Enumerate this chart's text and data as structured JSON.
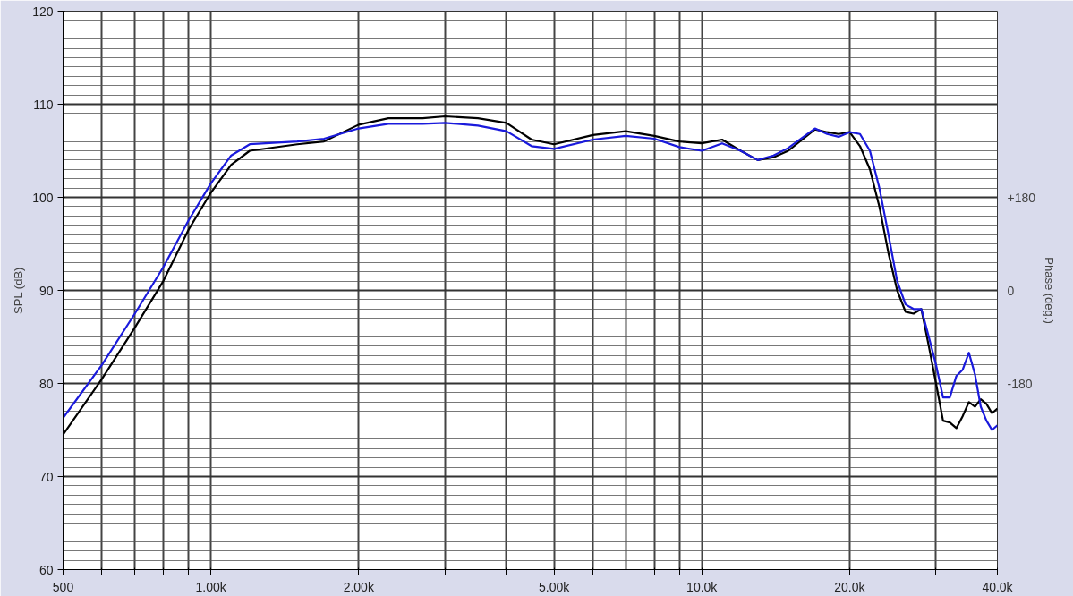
{
  "chart_data": {
    "type": "line",
    "xlabel": null,
    "ylabel": "SPL (dB)",
    "y2label": "Phase (deg.)",
    "log": "x",
    "x": [
      500,
      600,
      700,
      800,
      900,
      1000,
      1100,
      1200,
      1500,
      1700,
      2000,
      2300,
      2700,
      3000,
      3500,
      4000,
      4500,
      5000,
      6000,
      7000,
      8000,
      9000,
      10000,
      11000,
      12000,
      13000,
      14000,
      15000,
      17000,
      18000,
      19000,
      20000,
      21000,
      22000,
      23000,
      24000,
      25000,
      26000,
      27000,
      28000,
      29000,
      30000,
      31000,
      32000,
      33000,
      34000,
      35000,
      36000,
      37000,
      38000,
      39000,
      40000
    ],
    "series": [
      {
        "color": "#000000",
        "values": [
          74.5,
          80.5,
          86,
          91,
          96.5,
          100.5,
          103.5,
          105,
          105.7,
          106,
          107.8,
          108.5,
          108.5,
          108.7,
          108.5,
          108,
          106.2,
          105.7,
          106.7,
          107.1,
          106.6,
          106,
          105.8,
          106.2,
          105,
          104,
          104.3,
          105,
          107.3,
          107,
          106.8,
          107,
          105.5,
          103,
          99,
          94,
          90,
          87.7,
          87.5,
          88,
          84,
          80,
          76,
          75.8,
          75.2,
          76.5,
          78,
          77.5,
          78.3,
          77.8,
          76.8,
          77.3
        ]
      },
      {
        "color": "#1a1adc",
        "values": [
          76.3,
          82,
          87.5,
          92.5,
          97.5,
          101.5,
          104.5,
          105.7,
          106,
          106.3,
          107.4,
          107.9,
          107.9,
          108,
          107.7,
          107.1,
          105.5,
          105.2,
          106.2,
          106.6,
          106.3,
          105.4,
          105,
          105.8,
          105,
          104,
          104.5,
          105.3,
          107.4,
          106.8,
          106.5,
          107,
          106.8,
          105,
          101,
          96,
          91,
          88.5,
          88,
          88,
          85,
          82,
          78.5,
          78.5,
          80.8,
          81.5,
          83.3,
          81,
          77.5,
          76,
          75,
          75.5
        ]
      }
    ],
    "xlim": [
      500,
      40000
    ],
    "xticks": [
      500,
      {
        "value": 600,
        "label": null
      },
      {
        "value": 700,
        "label": null
      },
      {
        "value": 800,
        "label": null
      },
      {
        "value": 900,
        "label": null
      },
      {
        "value": 1000,
        "label": "1.00k"
      },
      {
        "value": 2000,
        "label": "2.00k"
      },
      {
        "value": 3000,
        "label": null
      },
      {
        "value": 4000,
        "label": null
      },
      {
        "value": 5000,
        "label": "5.00k"
      },
      {
        "value": 6000,
        "label": null
      },
      {
        "value": 7000,
        "label": null
      },
      {
        "value": 8000,
        "label": null
      },
      {
        "value": 9000,
        "label": null
      },
      {
        "value": 10000,
        "label": "10.0k"
      },
      {
        "value": 20000,
        "label": "20.0k"
      },
      {
        "value": 30000,
        "label": null
      },
      {
        "value": 40000,
        "label": "40.0k"
      }
    ],
    "ylim": [
      60,
      120
    ],
    "yticks": [
      60,
      70,
      80,
      90,
      100,
      110,
      120
    ],
    "y2lim": [
      -540,
      540
    ],
    "y2ticks": [
      {
        "value": 180,
        "label": "+180"
      },
      0,
      -180
    ],
    "grid": true,
    "line_style": "solid",
    "marker": "none"
  }
}
